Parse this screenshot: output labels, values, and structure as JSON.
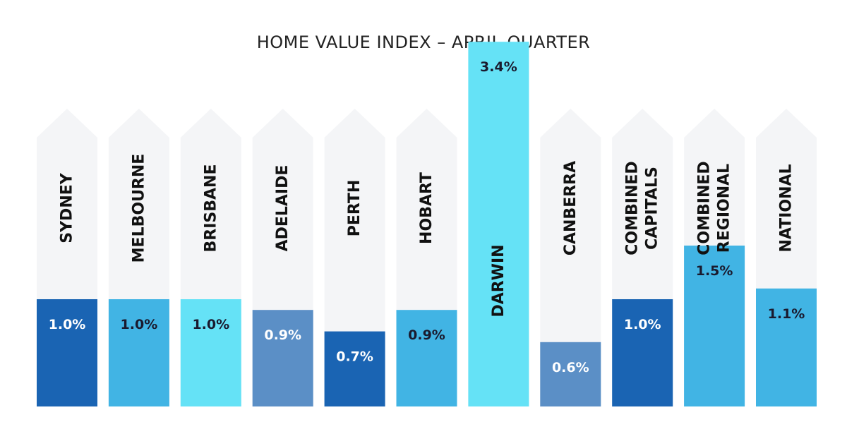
{
  "chart_data": {
    "type": "bar",
    "title": "HOME VALUE INDEX – APRIL QUARTER",
    "xlabel": "",
    "ylabel": "",
    "ylim": [
      0,
      4.5
    ],
    "categories": [
      {
        "label_lines": [
          "SYDNEY"
        ]
      },
      {
        "label_lines": [
          "MELBOURNE"
        ]
      },
      {
        "label_lines": [
          "BRISBANE"
        ]
      },
      {
        "label_lines": [
          "ADELAIDE"
        ]
      },
      {
        "label_lines": [
          "PERTH"
        ]
      },
      {
        "label_lines": [
          "HOBART"
        ]
      },
      {
        "label_lines": [
          "DARWIN"
        ]
      },
      {
        "label_lines": [
          "CANBERRA"
        ]
      },
      {
        "label_lines": [
          "COMBINED",
          "CAPITALS"
        ]
      },
      {
        "label_lines": [
          "COMBINED",
          "REGIONAL"
        ]
      },
      {
        "label_lines": [
          "NATIONAL"
        ]
      }
    ],
    "values": [
      1.0,
      1.0,
      1.0,
      0.9,
      0.7,
      0.9,
      3.4,
      0.6,
      1.0,
      1.5,
      1.1
    ],
    "value_labels": [
      "1.0%",
      "1.0%",
      "1.0%",
      "0.9%",
      "0.7%",
      "0.9%",
      "3.4%",
      "0.6%",
      "1.0%",
      "1.5%",
      "1.1%"
    ],
    "bar_colors": [
      "#1a64b3",
      "#41b4e4",
      "#65e2f6",
      "#5b8fc6",
      "#1a64b3",
      "#41b4e4",
      "#65e2f6",
      "#5b8fc6",
      "#1a64b3",
      "#41b4e4",
      "#41b4e4"
    ],
    "value_label_colors": [
      "#ffffff",
      "#1a1a2e",
      "#1a1a2e",
      "#ffffff",
      "#ffffff",
      "#1a1a2e",
      "#1a1a2e",
      "#ffffff",
      "#ffffff",
      "#1a1a2e",
      "#1a1a2e"
    ],
    "background_arrow_color": "#f4f5f7"
  }
}
